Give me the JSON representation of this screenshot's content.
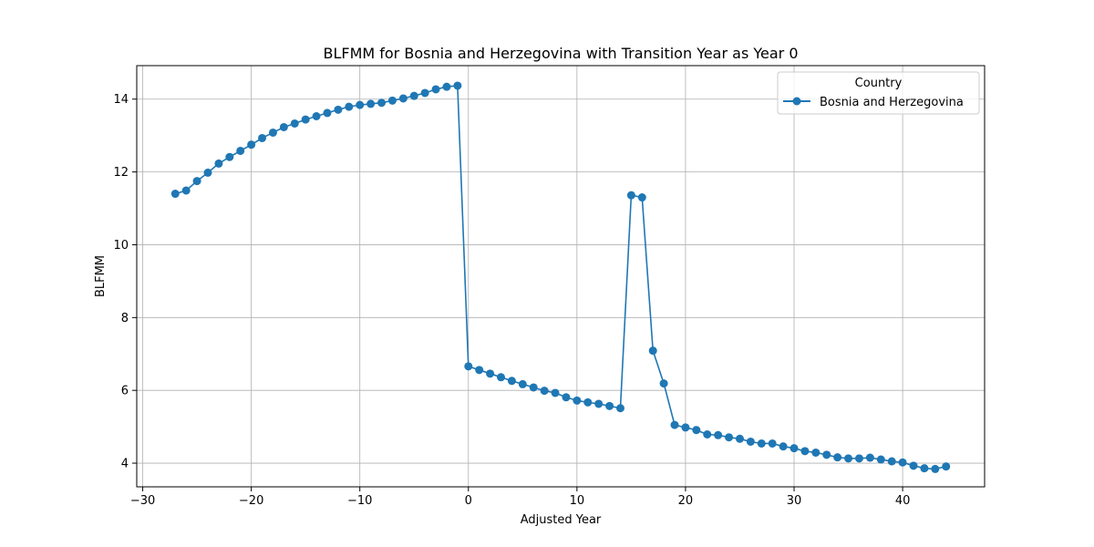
{
  "chart_data": {
    "type": "line",
    "title": "BLFMM for Bosnia and Herzegovina with Transition Year as Year 0",
    "xlabel": "Adjusted Year",
    "ylabel": "BLFMM",
    "xlim": [
      -30.55,
      47.55
    ],
    "ylim": [
      3.35,
      14.92
    ],
    "xticks": [
      -30,
      -20,
      -10,
      0,
      10,
      20,
      30,
      40
    ],
    "xtick_labels": [
      "−30",
      "−20",
      "−10",
      "0",
      "10",
      "20",
      "30",
      "40"
    ],
    "yticks": [
      4,
      6,
      8,
      10,
      12,
      14
    ],
    "ytick_labels": [
      "4",
      "6",
      "8",
      "10",
      "12",
      "14"
    ],
    "grid": true,
    "legend": {
      "title": "Country",
      "placement": "upper right"
    },
    "series": [
      {
        "name": "Bosnia and Herzegovina",
        "color": "#1f77b4",
        "marker": "circle",
        "x": [
          -27,
          -26,
          -25,
          -24,
          -23,
          -22,
          -21,
          -20,
          -19,
          -18,
          -17,
          -16,
          -15,
          -14,
          -13,
          -12,
          -11,
          -10,
          -9,
          -8,
          -7,
          -6,
          -5,
          -4,
          -3,
          -2,
          -1,
          0,
          1,
          2,
          3,
          4,
          5,
          6,
          7,
          8,
          9,
          10,
          11,
          12,
          13,
          14,
          15,
          16,
          17,
          18,
          19,
          20,
          21,
          22,
          23,
          24,
          25,
          26,
          27,
          28,
          29,
          30,
          31,
          32,
          33,
          34,
          35,
          36,
          37,
          38,
          39,
          40,
          41,
          42,
          43,
          44
        ],
        "y": [
          11.4,
          11.49,
          11.75,
          11.98,
          12.23,
          12.41,
          12.58,
          12.75,
          12.93,
          13.08,
          13.23,
          13.33,
          13.44,
          13.53,
          13.62,
          13.71,
          13.79,
          13.84,
          13.87,
          13.9,
          13.96,
          14.02,
          14.09,
          14.17,
          14.27,
          14.34,
          14.37,
          6.66,
          6.56,
          6.46,
          6.36,
          6.26,
          6.17,
          6.08,
          5.99,
          5.93,
          5.81,
          5.72,
          5.67,
          5.63,
          5.57,
          5.51,
          11.36,
          11.3,
          7.09,
          6.19,
          5.05,
          4.98,
          4.91,
          4.79,
          4.77,
          4.71,
          4.67,
          4.59,
          4.54,
          4.54,
          4.46,
          4.41,
          4.33,
          4.29,
          4.23,
          4.16,
          4.13,
          4.13,
          4.15,
          4.1,
          4.05,
          4.02,
          3.93,
          3.86,
          3.84,
          3.91
        ]
      }
    ]
  }
}
